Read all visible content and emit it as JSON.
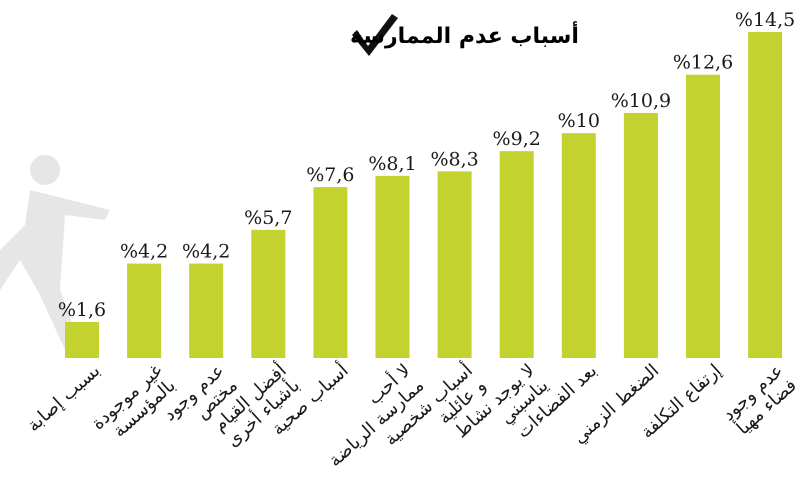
{
  "chart_data": {
    "type": "bar",
    "title": "أسباب عدم الممارسة",
    "categories": [
      [
        "بسبب إصابة"
      ],
      [
        "غير موجودة",
        "بالمؤسسة"
      ],
      [
        "عدم وجود",
        "مختص"
      ],
      [
        "أفضل القيام",
        "بأشياء أخرى"
      ],
      [
        "أسباب صحية"
      ],
      [
        "لا أحب",
        "ممارسة الرياضة"
      ],
      [
        "أسباب شخصية",
        "و عائلية"
      ],
      [
        "لا يوجد نشاط",
        "يناسبني"
      ],
      [
        "بعد الفضاءات"
      ],
      [
        "الضغط الزمني"
      ],
      [
        "إرتفاع التكلفة"
      ],
      [
        "عدم وجود",
        "فضاء مهيأ"
      ]
    ],
    "values": [
      1.6,
      4.2,
      4.2,
      5.7,
      7.6,
      8.1,
      8.3,
      9.2,
      10,
      10.9,
      12.6,
      14.5
    ],
    "value_labels": [
      "%1,6",
      "%4,2",
      "%4,2",
      "%5,7",
      "%7,6",
      "%8,1",
      "%8,3",
      "%9,2",
      "%10",
      "%10,9",
      "%12,6",
      "%14,5"
    ],
    "color": "#c3d22f"
  }
}
